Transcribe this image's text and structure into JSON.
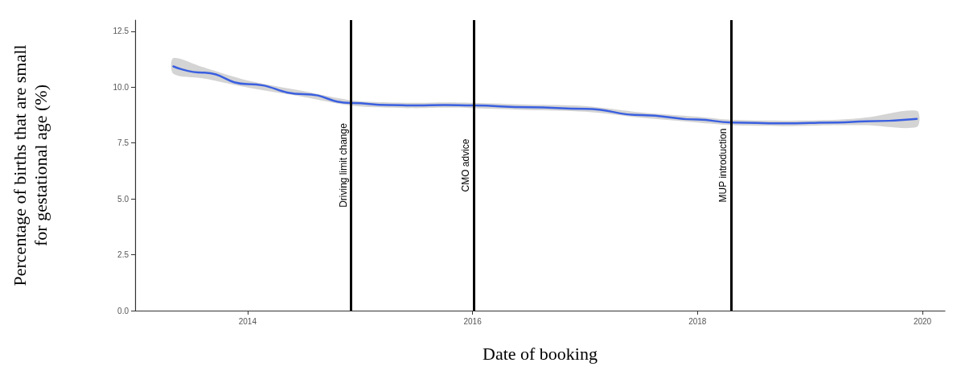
{
  "chart_data": {
    "type": "line",
    "xlabel": "Date of booking",
    "ylabel": "Percentage of births that are small\nfor gestational age (%)",
    "x": [
      2013.34,
      2013.6,
      2014,
      2014.5,
      2014.92,
      2015.25,
      2015.5,
      2015.75,
      2016,
      2016.5,
      2017,
      2017.5,
      2018,
      2018.3,
      2018.75,
      2019.25,
      2019.5,
      2019.95
    ],
    "series": [
      {
        "color": "#3a5fe0",
        "values": [
          10.93,
          10.65,
          10.14,
          9.69,
          9.29,
          9.2,
          9.18,
          9.2,
          9.18,
          9.1,
          9.03,
          8.75,
          8.55,
          8.42,
          8.38,
          8.42,
          8.47,
          8.58
        ],
        "lower": [
          10.6,
          10.4,
          9.98,
          9.56,
          9.17,
          9.08,
          9.06,
          9.08,
          9.06,
          8.98,
          8.9,
          8.63,
          8.42,
          8.3,
          8.26,
          8.3,
          8.3,
          8.22
        ],
        "upper": [
          11.3,
          10.9,
          10.3,
          9.82,
          9.41,
          9.32,
          9.3,
          9.32,
          9.3,
          9.22,
          9.16,
          8.87,
          8.68,
          8.54,
          8.5,
          8.54,
          8.64,
          8.94
        ]
      }
    ],
    "xlim": [
      2013,
      2020.2
    ],
    "xticks": [
      2014,
      2016,
      2018,
      2020
    ],
    "ylim": [
      0,
      13
    ],
    "yticks": [
      {
        "value": 0,
        "label": "0.0"
      },
      {
        "value": 2.5,
        "label": "2.5"
      },
      {
        "value": 5,
        "label": "5.0"
      },
      {
        "value": 7.5,
        "label": "7.5"
      },
      {
        "value": 10,
        "label": "10.0"
      },
      {
        "value": 12.5,
        "label": "12.5"
      }
    ],
    "ref_lines": [
      {
        "axis": "x",
        "value": 2014.92,
        "label": "Driving limit change",
        "color": "#000000"
      },
      {
        "axis": "x",
        "value": 2016.01,
        "label": "CMO advice",
        "color": "#000000"
      },
      {
        "axis": "x",
        "value": 2018.3,
        "label": "MUP introduction",
        "color": "#000000"
      }
    ],
    "grid": false,
    "marker": "none"
  }
}
